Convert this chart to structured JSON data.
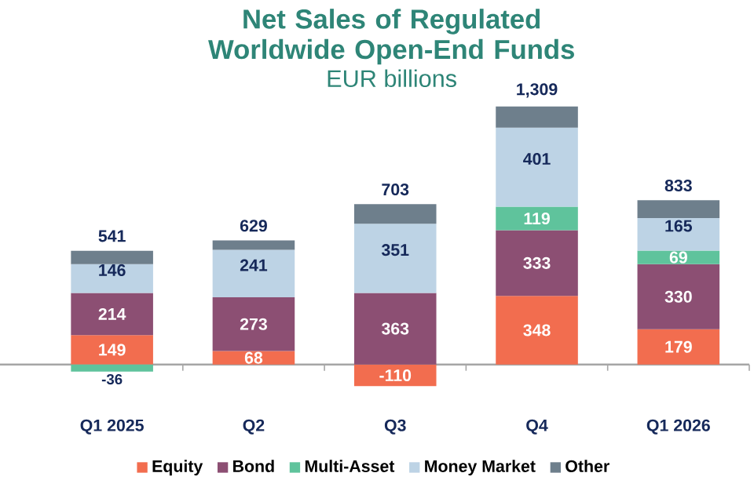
{
  "chart_data": {
    "type": "bar",
    "stacked": true,
    "title": "Net Sales of Regulated Worldwide Open-End Funds",
    "subtitle": "EUR billions",
    "categories": [
      "Q1 2025",
      "Q2",
      "Q3",
      "Q4",
      "Q1 2026"
    ],
    "series": [
      {
        "name": "Equity",
        "color": "#f26d4f",
        "values": [
          149,
          68,
          -110,
          348,
          179
        ],
        "value_labels": [
          "149",
          "68",
          "-110",
          "348",
          "179"
        ]
      },
      {
        "name": "Bond",
        "color": "#8c4f73",
        "values": [
          214,
          273,
          363,
          333,
          330
        ],
        "value_labels": [
          "214",
          "273",
          "363",
          "333",
          "330"
        ]
      },
      {
        "name": "Multi-Asset",
        "color": "#5fc39c",
        "values": [
          -36,
          null,
          null,
          119,
          69
        ],
        "value_labels": [
          "-36",
          null,
          null,
          "119",
          "69"
        ]
      },
      {
        "name": "Money Market",
        "color": "#bdd3e5",
        "values": [
          146,
          241,
          351,
          401,
          165
        ],
        "value_labels": [
          "146",
          "241",
          "351",
          "401",
          "165"
        ]
      },
      {
        "name": "Other",
        "color": "#6e7f8c",
        "values": [
          68,
          47,
          99,
          108,
          90
        ]
      }
    ],
    "totals": [
      "541",
      "629",
      "703",
      "1,309",
      "833"
    ],
    "legend": "bottom"
  }
}
